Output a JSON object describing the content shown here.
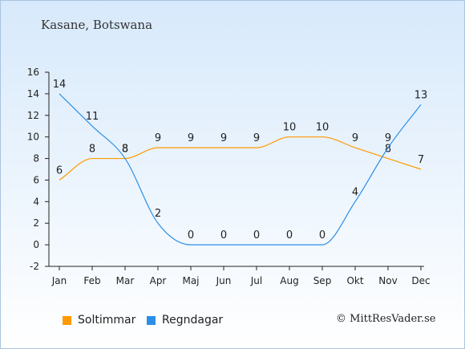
{
  "location": "Kasane, Botswana",
  "credit": "© MittResVader.se",
  "colors": {
    "sun": "#ff9900",
    "rain": "#2b8fe8"
  },
  "chart_data": {
    "type": "line",
    "categories": [
      "Jan",
      "Feb",
      "Mar",
      "Apr",
      "Maj",
      "Jun",
      "Jul",
      "Aug",
      "Sep",
      "Okt",
      "Nov",
      "Dec"
    ],
    "ylim": [
      -2,
      16
    ],
    "yticks": [
      -2,
      0,
      2,
      4,
      6,
      8,
      10,
      12,
      14,
      16
    ],
    "grid": false,
    "legend": "bottom",
    "series": [
      {
        "name": "Soltimmar",
        "color": "#ff9900",
        "values": [
          6,
          8,
          8,
          9,
          9,
          9,
          9,
          10,
          10,
          9,
          8,
          7
        ]
      },
      {
        "name": "Regndagar",
        "color": "#2b8fe8",
        "values": [
          14,
          11,
          8,
          2,
          0,
          0,
          0,
          0,
          0,
          4,
          9,
          13
        ]
      }
    ]
  }
}
